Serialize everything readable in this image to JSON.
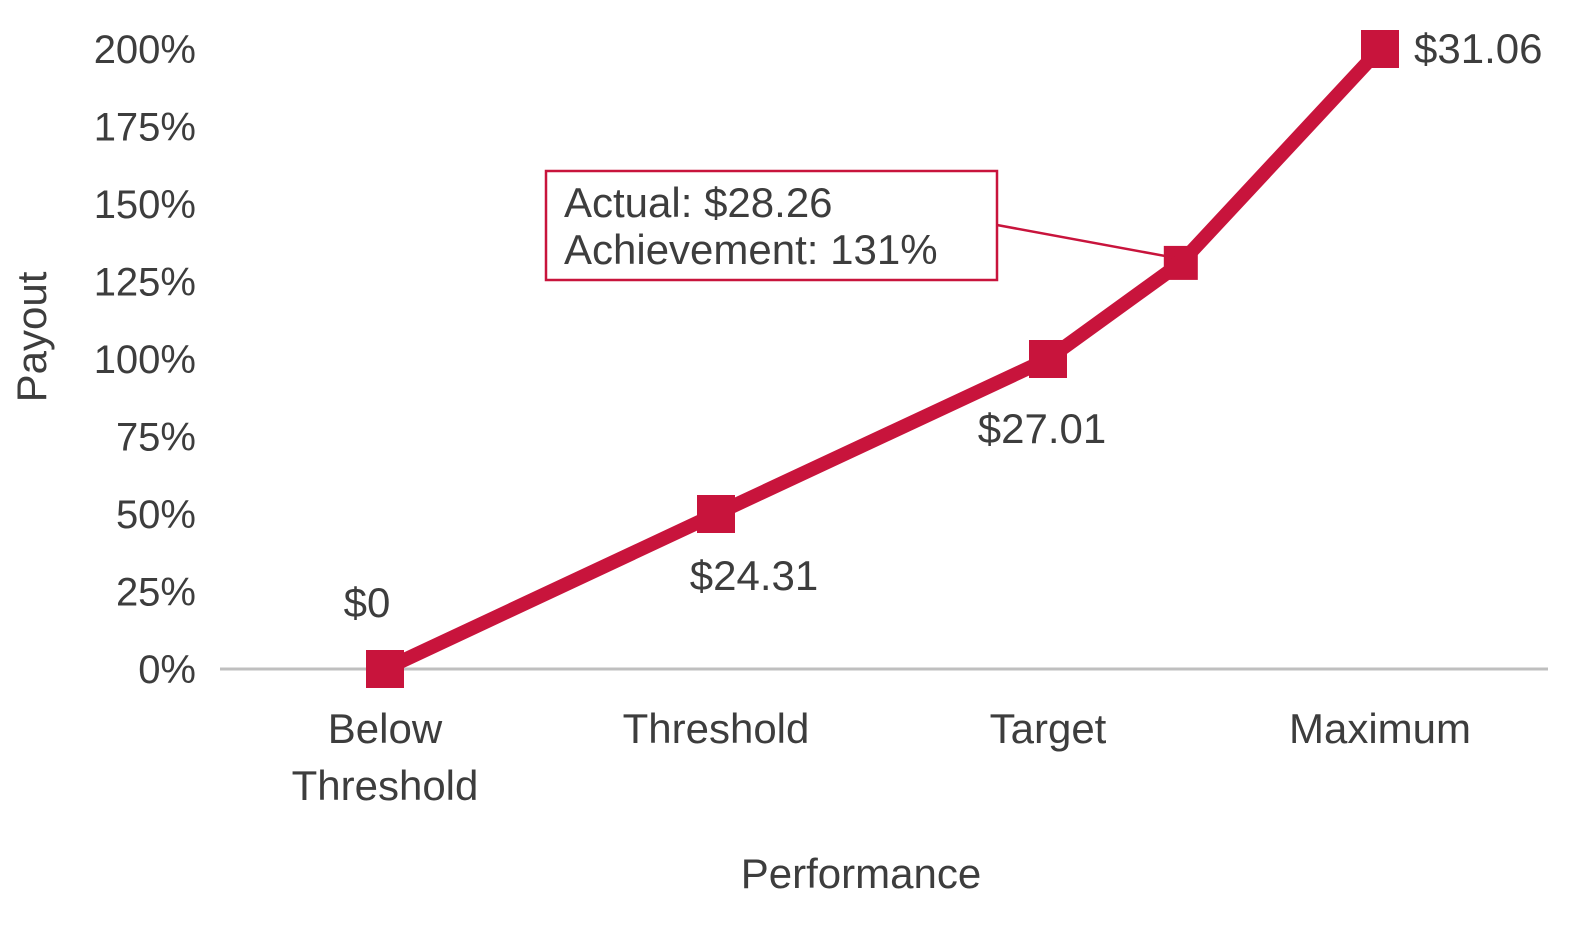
{
  "chart_data": {
    "type": "line",
    "categories": [
      [
        "Below",
        "Threshold"
      ],
      [
        "Threshold"
      ],
      [
        "Target"
      ],
      [
        "Maximum"
      ]
    ],
    "series": [
      {
        "values": [
          0,
          50,
          100,
          200
        ],
        "point_labels": [
          "$0",
          "$24.31",
          "$27.01",
          "$31.06"
        ]
      }
    ],
    "actual_point": {
      "x": 2.4,
      "y": 131,
      "callout_lines": [
        "Actual: $28.26",
        "Achievement: 131%"
      ]
    },
    "xlabel": "Performance",
    "ylabel": "Payout",
    "ylim": [
      0,
      200
    ],
    "yticks": [
      {
        "value": 0,
        "label": "0%"
      },
      {
        "value": 25,
        "label": "25%"
      },
      {
        "value": 50,
        "label": "50%"
      },
      {
        "value": 75,
        "label": "75%"
      },
      {
        "value": 100,
        "label": "100%"
      },
      {
        "value": 125,
        "label": "125%"
      },
      {
        "value": 150,
        "label": "150%"
      },
      {
        "value": 175,
        "label": "175%"
      },
      {
        "value": 200,
        "label": "200%"
      }
    ],
    "grid": false,
    "legend": "none",
    "colors": {
      "series": "#c8143c",
      "baseline": "#bfbfbf",
      "text": "#3d3d3d"
    }
  }
}
